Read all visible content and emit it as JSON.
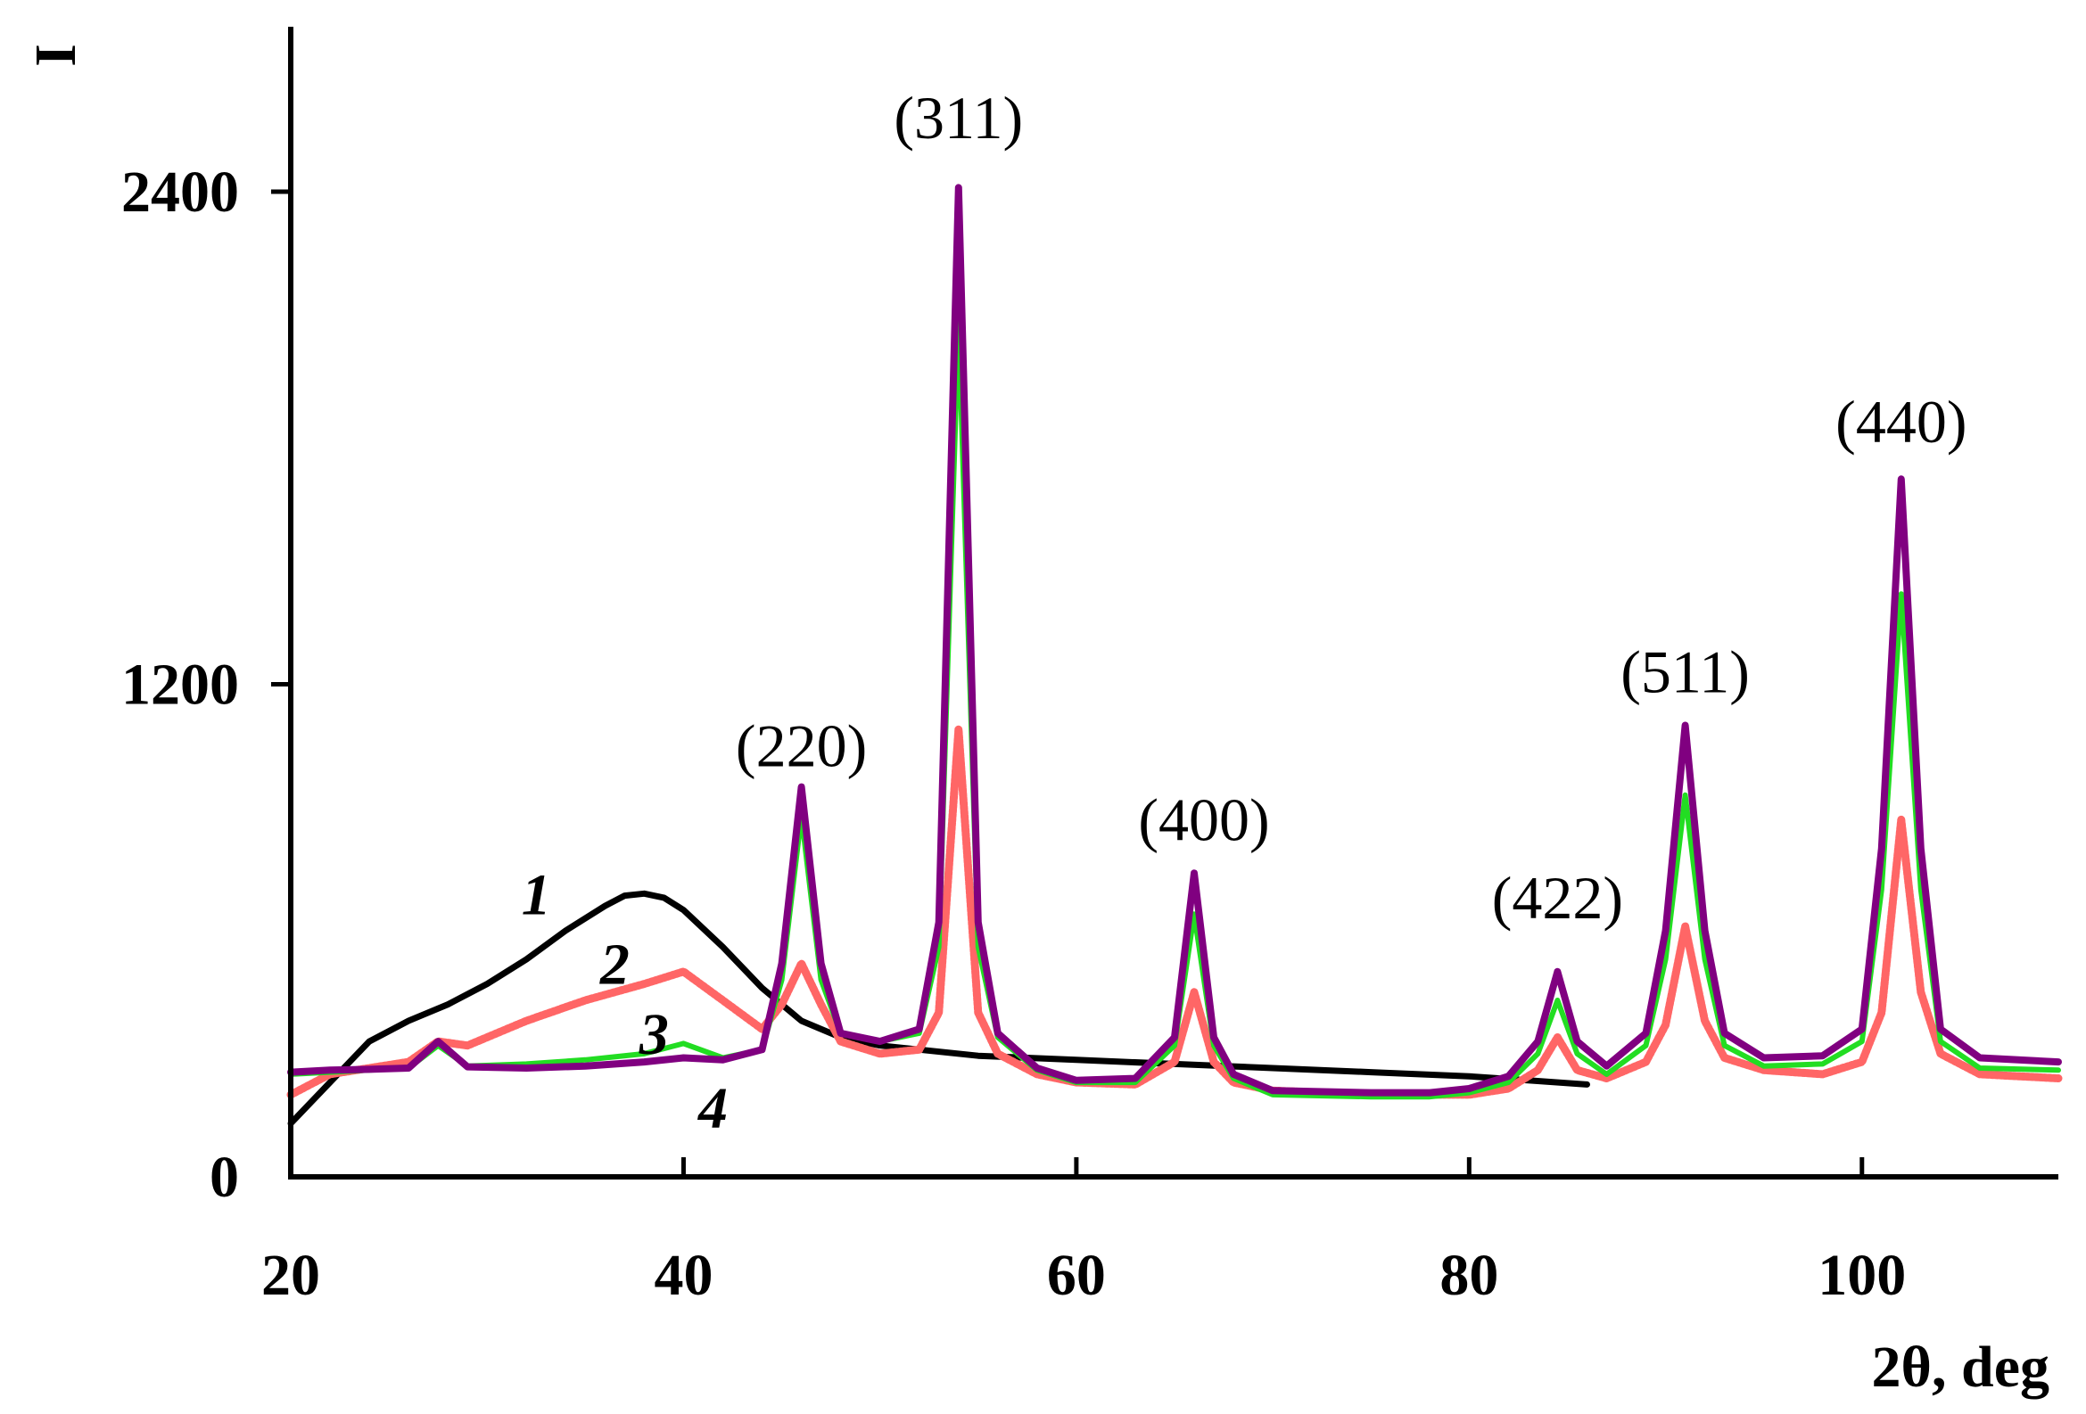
{
  "chart_data": {
    "type": "line",
    "title": "",
    "xlabel": "2θ, deg",
    "ylabel": "I",
    "xlim": [
      20,
      110
    ],
    "ylim": [
      0,
      2800
    ],
    "x_ticks": [
      20,
      40,
      60,
      80,
      100
    ],
    "y_ticks": [
      0,
      1200,
      2400
    ],
    "grid": false,
    "series": [
      {
        "name": "1",
        "color": "#000000",
        "x": [
          20,
          22,
          24,
          26,
          28,
          30,
          32,
          34,
          36,
          37,
          38,
          39,
          40,
          42,
          44,
          46,
          48,
          50,
          55,
          60,
          65,
          70,
          75,
          80,
          83,
          86
        ],
        "y": [
          130,
          230,
          330,
          380,
          420,
          470,
          530,
          600,
          660,
          685,
          690,
          680,
          650,
          560,
          460,
          380,
          340,
          320,
          295,
          285,
          275,
          265,
          255,
          245,
          235,
          225
        ]
      },
      {
        "name": "2",
        "color": "#ff6666",
        "x": [
          20,
          22,
          24,
          26,
          27.5,
          29,
          32,
          35,
          38,
          40,
          42,
          44,
          45,
          46,
          47,
          48,
          50,
          52,
          53,
          54,
          55,
          56,
          58,
          60,
          63,
          65,
          66,
          67,
          68,
          70,
          75,
          80,
          82,
          83.5,
          84.5,
          85.5,
          87,
          89,
          90,
          91,
          92,
          93,
          95,
          98,
          100,
          101,
          102,
          103,
          104,
          106,
          110
        ],
        "y": [
          200,
          250,
          265,
          280,
          330,
          320,
          380,
          430,
          470,
          500,
          430,
          360,
          420,
          520,
          420,
          330,
          300,
          310,
          400,
          1090,
          400,
          300,
          250,
          230,
          225,
          280,
          450,
          280,
          230,
          210,
          200,
          200,
          215,
          260,
          340,
          260,
          240,
          280,
          370,
          610,
          380,
          290,
          260,
          250,
          280,
          400,
          870,
          450,
          300,
          250,
          240
        ]
      },
      {
        "name": "3",
        "color": "#22dd22",
        "x": [
          20,
          22,
          24,
          26,
          27.5,
          29,
          32,
          35,
          38,
          40,
          42,
          44,
          45,
          46,
          47,
          48,
          50,
          52,
          53,
          54,
          55,
          56,
          58,
          60,
          63,
          65,
          66,
          67,
          68,
          70,
          75,
          78,
          80,
          82,
          83.5,
          84.5,
          85.5,
          87,
          89,
          90,
          91,
          92,
          93,
          95,
          98,
          100,
          101,
          102,
          103,
          104,
          106,
          110
        ],
        "y": [
          250,
          255,
          260,
          265,
          320,
          270,
          275,
          285,
          300,
          325,
          290,
          310,
          480,
          880,
          480,
          350,
          330,
          350,
          560,
          2080,
          560,
          340,
          260,
          230,
          230,
          320,
          640,
          320,
          240,
          200,
          195,
          195,
          205,
          230,
          300,
          430,
          300,
          250,
          320,
          530,
          930,
          530,
          320,
          270,
          275,
          330,
          700,
          1420,
          700,
          330,
          265,
          260
        ]
      },
      {
        "name": "4",
        "color": "#800080",
        "x": [
          20,
          22,
          24,
          26,
          27.5,
          29,
          32,
          35,
          38,
          40,
          42,
          44,
          45,
          46,
          47,
          48,
          50,
          52,
          53,
          54,
          55,
          56,
          58,
          60,
          63,
          65,
          66,
          67,
          68,
          70,
          75,
          78,
          80,
          82,
          83.5,
          84.5,
          85.5,
          87,
          89,
          90,
          91,
          92,
          93,
          95,
          98,
          100,
          101,
          102,
          103,
          104,
          106,
          110
        ],
        "y": [
          255,
          260,
          262,
          265,
          330,
          268,
          265,
          270,
          280,
          290,
          285,
          310,
          520,
          950,
          520,
          350,
          330,
          360,
          620,
          2410,
          620,
          350,
          265,
          235,
          240,
          340,
          740,
          340,
          250,
          210,
          205,
          205,
          215,
          245,
          330,
          500,
          330,
          270,
          350,
          600,
          1100,
          600,
          350,
          290,
          295,
          360,
          800,
          1700,
          800,
          360,
          290,
          280
        ]
      }
    ],
    "annotations": [
      {
        "text": "(220)",
        "x": 46,
        "y": 1000
      },
      {
        "text": "(311)",
        "x": 54,
        "y": 2530
      },
      {
        "text": "(400)",
        "x": 66.5,
        "y": 820
      },
      {
        "text": "(422)",
        "x": 84.5,
        "y": 630
      },
      {
        "text": "(511)",
        "x": 91,
        "y": 1180
      },
      {
        "text": "(440)",
        "x": 102,
        "y": 1790
      },
      {
        "text": "1",
        "x": 32.5,
        "y": 640
      },
      {
        "text": "2",
        "x": 36.5,
        "y": 470
      },
      {
        "text": "3",
        "x": 38.5,
        "y": 300
      },
      {
        "text": "4",
        "x": 41.5,
        "y": 120
      }
    ]
  }
}
